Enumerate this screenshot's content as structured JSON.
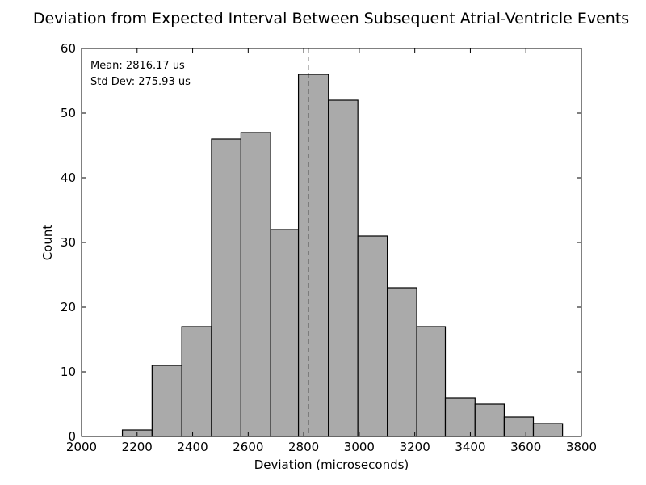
{
  "chart_data": {
    "type": "bar",
    "title": "Deviation from Expected Interval Between Subsequent Atrial-Ventricle Events",
    "xlabel": "Deviation (microseconds)",
    "ylabel": "Count",
    "xlim": [
      2000,
      3800
    ],
    "ylim": [
      0,
      60
    ],
    "xticks": [
      2000,
      2200,
      2400,
      2600,
      2800,
      3000,
      3200,
      3400,
      3600,
      3800
    ],
    "yticks": [
      0,
      10,
      20,
      30,
      40,
      50,
      60
    ],
    "bin_edges": [
      2147,
      2254,
      2361,
      2468,
      2574,
      2681,
      2781,
      2889,
      2995,
      3101,
      3207,
      3310,
      3417,
      3522,
      3627,
      3732
    ],
    "values": [
      1,
      11,
      17,
      46,
      47,
      32,
      56,
      52,
      31,
      23,
      17,
      6,
      5,
      3,
      2
    ],
    "mean": 2816.17,
    "annotations": [
      "Mean: 2816.17 us",
      "Std Dev: 275.93 us"
    ],
    "bar_color": "#aaaaaa",
    "edge_color": "#000000",
    "grid": false
  }
}
